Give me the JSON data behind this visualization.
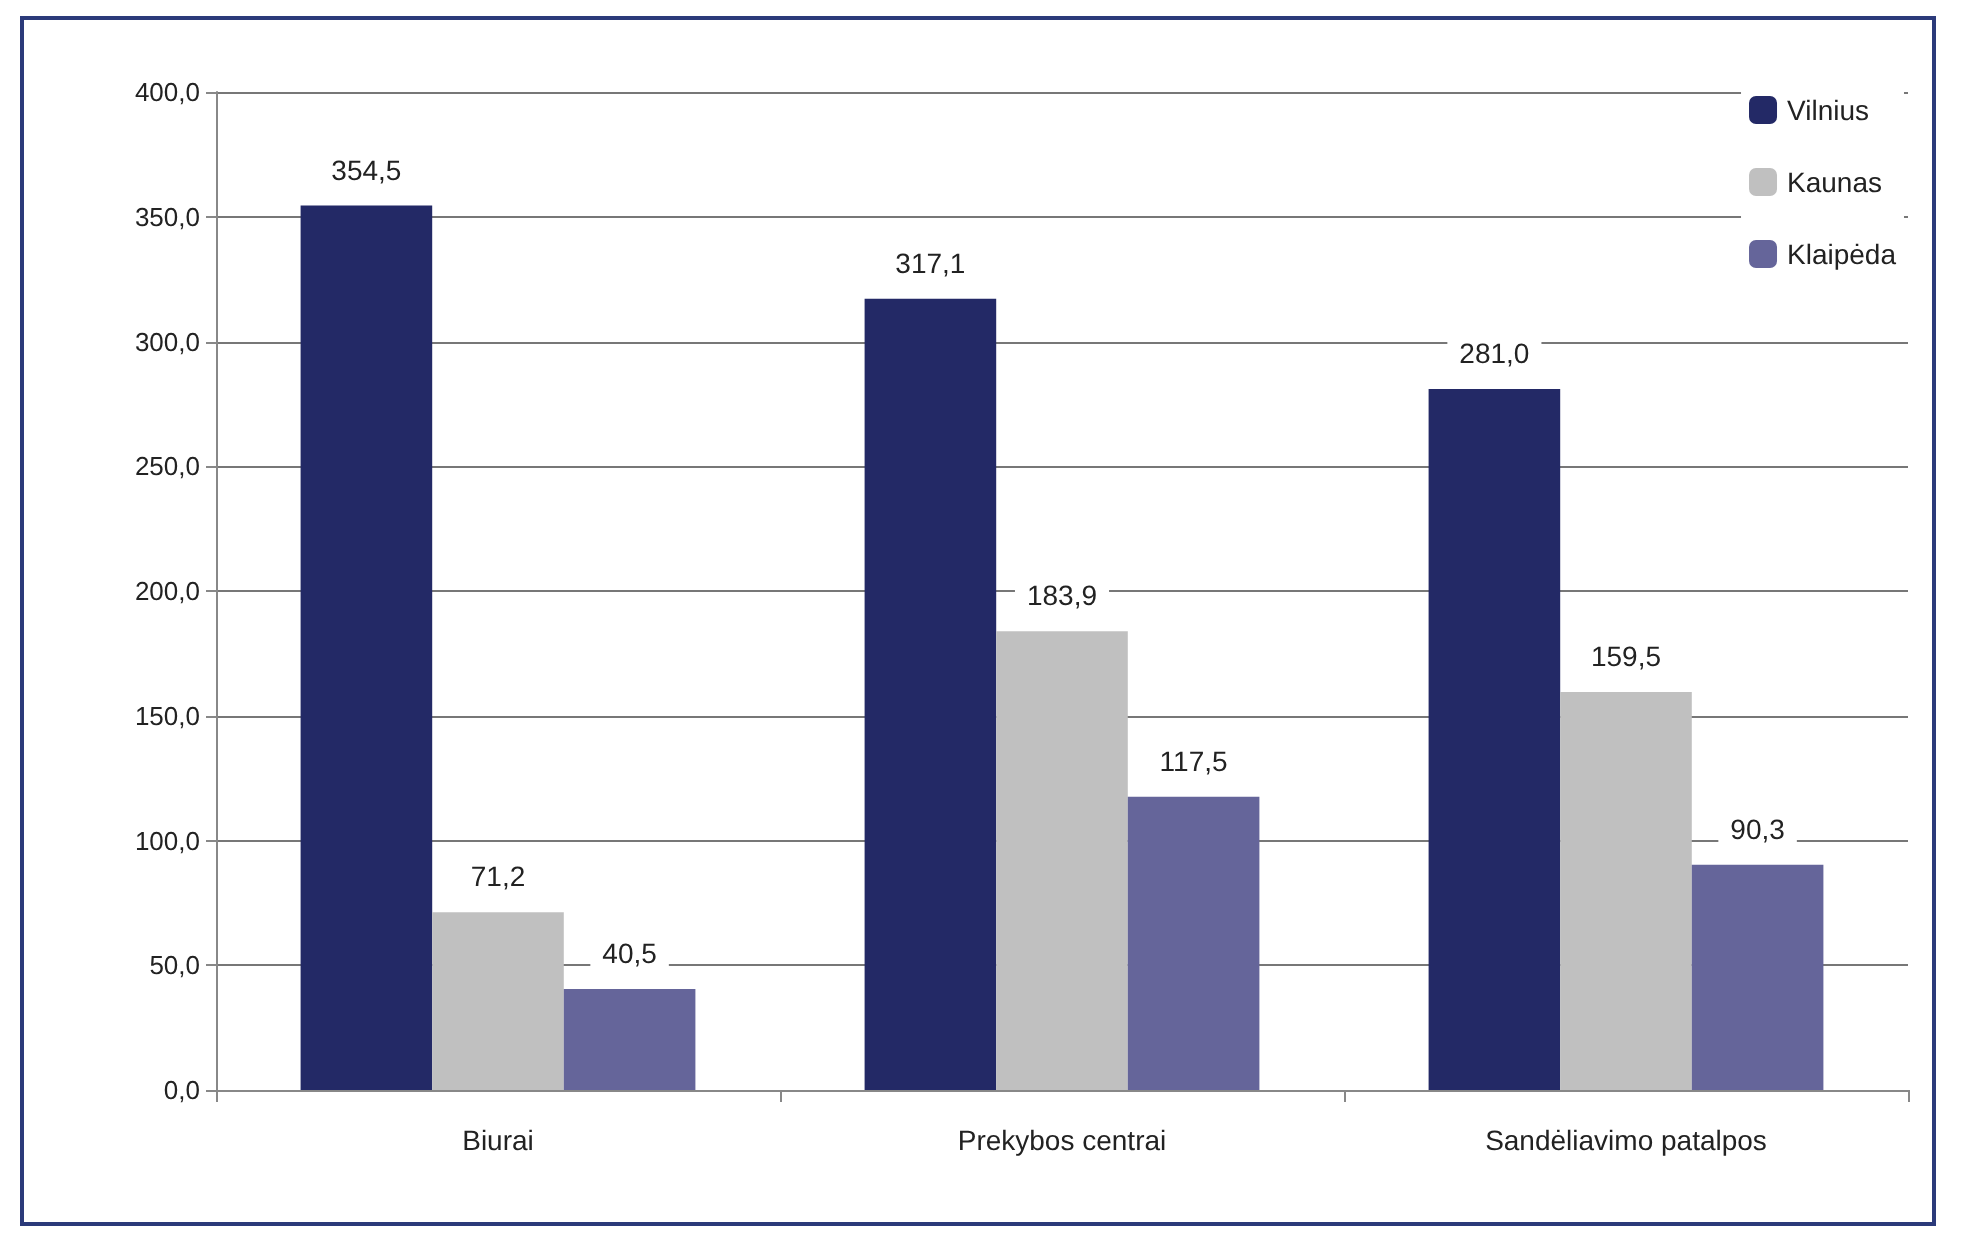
{
  "chart_data": {
    "type": "bar",
    "categories": [
      "Biurai",
      "Prekybos centrai",
      "Sandėliavimo patalpos"
    ],
    "series": [
      {
        "name": "Vilnius",
        "color": "#232966",
        "values": [
          354.5,
          317.1,
          281.0
        ],
        "value_labels": [
          "354,5",
          "317,1",
          "281,0"
        ]
      },
      {
        "name": "Kaunas",
        "color": "#c0c0c0",
        "values": [
          71.2,
          183.9,
          159.5
        ],
        "value_labels": [
          "71,2",
          "183,9",
          "159,5"
        ]
      },
      {
        "name": "Klaipėda",
        "color": "#65659a",
        "values": [
          40.5,
          117.5,
          90.3
        ],
        "value_labels": [
          "40,5",
          "117,5",
          "90,3"
        ]
      }
    ],
    "ylim": [
      0,
      400
    ],
    "yticks": [
      {
        "value": 0,
        "label": "0,0"
      },
      {
        "value": 50,
        "label": "50,0"
      },
      {
        "value": 100,
        "label": "100,0"
      },
      {
        "value": 150,
        "label": "150,0"
      },
      {
        "value": 200,
        "label": "200,0"
      },
      {
        "value": 250,
        "label": "250,0"
      },
      {
        "value": 300,
        "label": "300,0"
      },
      {
        "value": 350,
        "label": "350,0"
      },
      {
        "value": 400,
        "label": "400,0"
      }
    ],
    "grid": "y",
    "legend": "top right"
  }
}
